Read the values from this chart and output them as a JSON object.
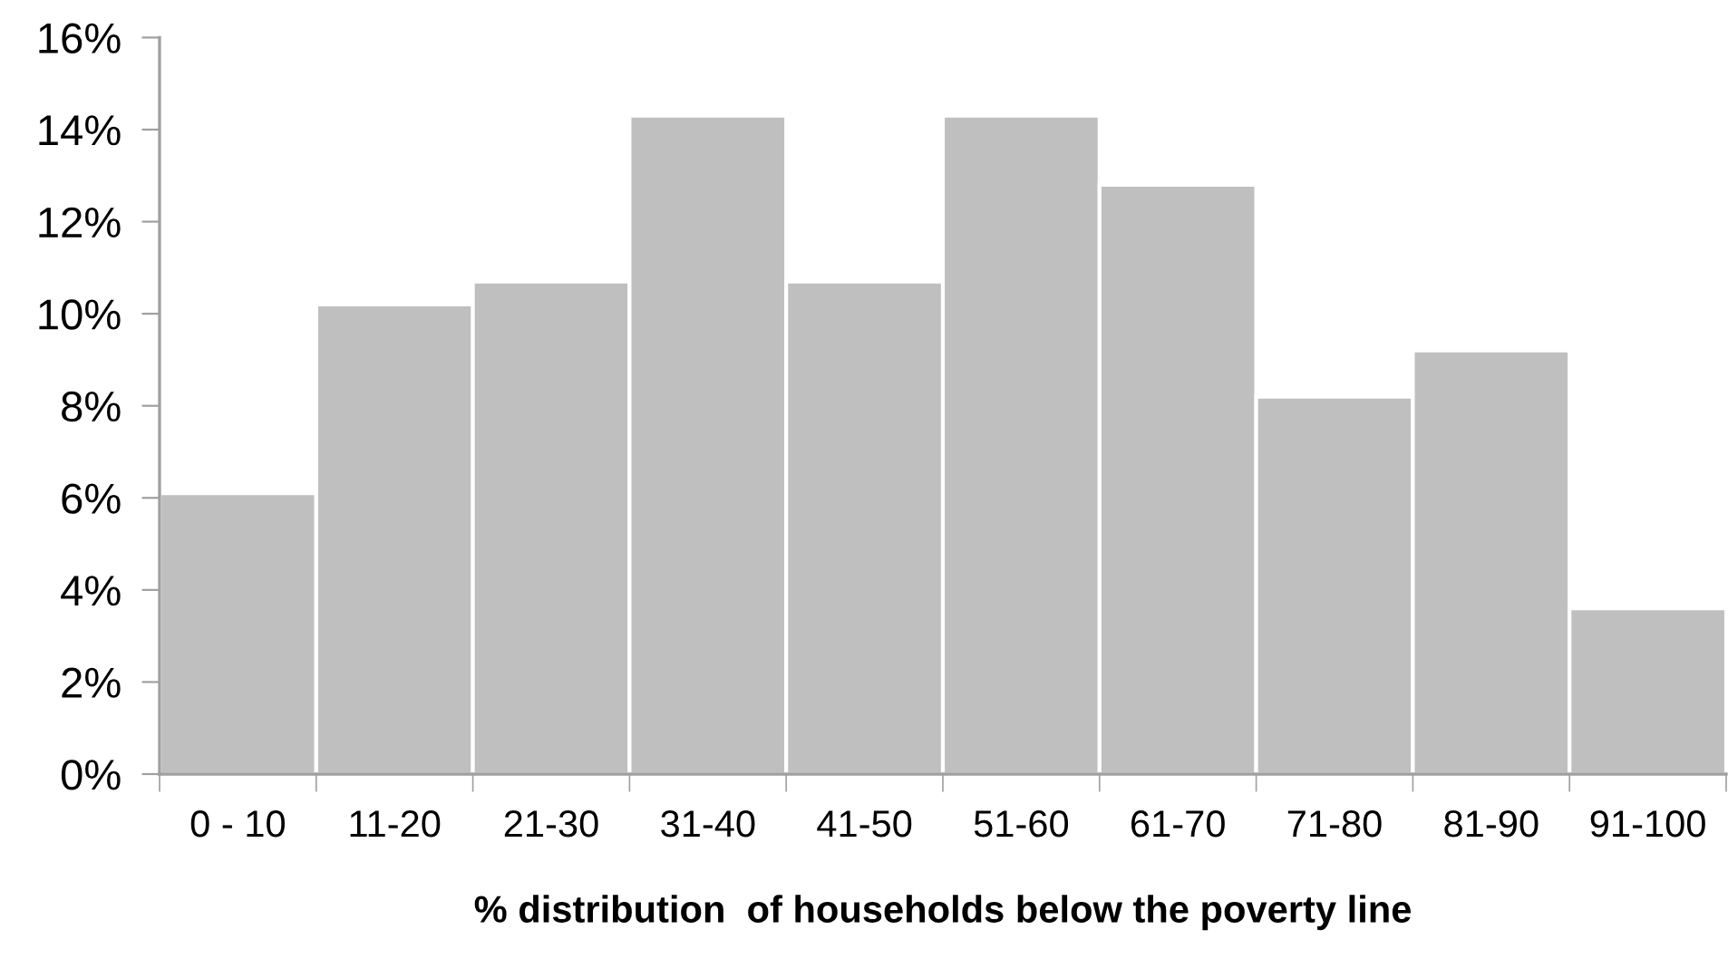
{
  "chart_data": {
    "type": "bar",
    "xlabel": "% distribution  of households below the poverty line",
    "categories": [
      "0 - 10",
      "11-20",
      "21-30",
      "31-40",
      "41-50",
      "51-60",
      "61-70",
      "71-80",
      "81-90",
      "91-100"
    ],
    "values": [
      6.1,
      10.2,
      10.7,
      14.3,
      10.7,
      14.3,
      12.8,
      8.2,
      9.2,
      3.6
    ],
    "color": "#bfbfbf",
    "ylim": [
      0,
      16
    ],
    "yticks": [
      {
        "value": 0,
        "label": "0%"
      },
      {
        "value": 2,
        "label": "2%"
      },
      {
        "value": 4,
        "label": "4%"
      },
      {
        "value": 6,
        "label": "6%"
      },
      {
        "value": 8,
        "label": "8%"
      },
      {
        "value": 10,
        "label": "10%"
      },
      {
        "value": 12,
        "label": "12%"
      },
      {
        "value": 14,
        "label": "14%"
      },
      {
        "value": 16,
        "label": "16%"
      }
    ],
    "grid": false
  }
}
